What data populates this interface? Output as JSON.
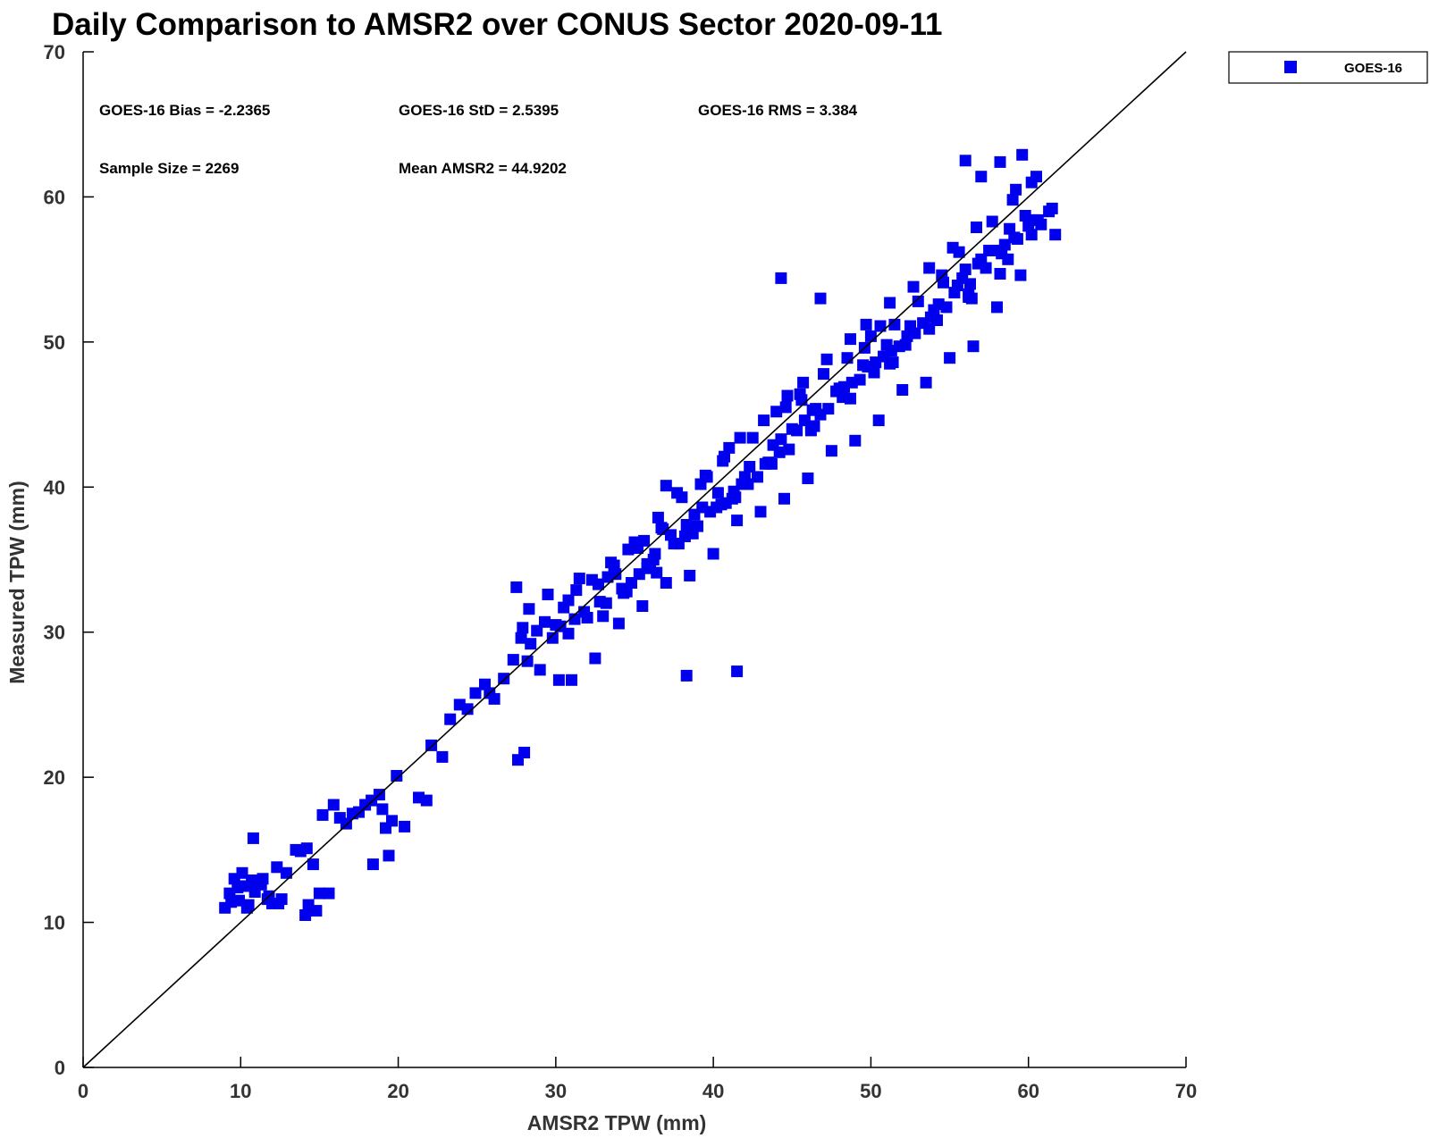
{
  "chart_data": {
    "type": "scatter",
    "title": "Daily Comparison to AMSR2 over CONUS Sector 2020-09-11",
    "xlabel": "AMSR2 TPW (mm)",
    "ylabel": "Measured TPW (mm)",
    "xlim": [
      0,
      70
    ],
    "ylim": [
      0,
      70
    ],
    "xticks": [
      "0",
      "10",
      "20",
      "30",
      "40",
      "50",
      "60",
      "70"
    ],
    "yticks": [
      "0",
      "10",
      "20",
      "30",
      "40",
      "50",
      "60",
      "70"
    ],
    "grid": false,
    "legend_position": "outside-top-right",
    "reference_line": "one-to-one",
    "marker_color": "#0000ee",
    "stats": [
      "GOES-16 Bias = -2.2365",
      "GOES-16 StD = 2.5395",
      "GOES-16 RMS = 3.384",
      "Sample Size = 2269",
      "Mean AMSR2 = 44.9202"
    ],
    "series": [
      {
        "name": "GOES-16",
        "x": [
          9.0,
          9.3,
          9.6,
          9.9,
          10.2,
          10.5,
          10.8,
          11.1,
          11.4,
          11.7,
          12.0,
          12.3,
          12.6,
          12.9,
          9.4,
          9.8,
          10.1,
          10.4,
          10.9,
          11.3,
          11.8,
          12.4,
          10.7,
          13.5,
          13.8,
          14.2,
          14.6,
          15.0,
          14.8,
          15.6,
          15.9,
          16.3,
          16.7,
          17.1,
          17.5,
          17.9,
          18.3,
          18.8,
          19.2,
          19.6,
          19.9,
          20.4,
          21.3,
          21.8,
          22.1,
          18.4,
          19.0,
          19.4,
          14.1,
          14.3,
          15.2,
          22.8,
          23.3,
          23.9,
          24.4,
          24.9,
          25.5,
          26.1,
          26.7,
          27.3,
          27.8,
          28.4,
          28.0,
          27.5,
          27.9,
          28.3,
          28.8,
          29.3,
          29.8,
          30.3,
          30.8,
          31.3,
          31.8,
          32.3,
          32.8,
          33.3,
          33.8,
          34.3,
          34.8,
          35.3,
          35.8,
          36.3,
          36.8,
          37.3,
          37.8,
          38.3,
          38.8,
          39.3,
          39.8,
          40.3,
          40.8,
          41.3,
          41.8,
          42.3,
          42.8,
          43.3,
          43.8,
          44.3,
          44.8,
          45.3,
          45.8,
          46.3,
          46.8,
          47.3,
          47.8,
          48.3,
          48.8,
          49.3,
          49.8,
          50.3,
          50.8,
          51.3,
          51.8,
          52.3,
          52.8,
          53.3,
          53.8,
          54.3,
          54.8,
          55.3,
          55.8,
          56.3,
          56.8,
          57.3,
          57.8,
          58.3,
          58.8,
          59.3,
          59.8,
          60.3,
          60.8,
          61.3,
          61.7,
          31.0,
          32.5,
          34.0,
          35.5,
          37.0,
          38.5,
          40.0,
          41.5,
          43.0,
          44.5,
          46.0,
          47.5,
          49.0,
          50.5,
          52.0,
          53.5,
          55.0,
          56.5,
          58.0,
          59.5,
          30.5,
          31.5,
          33.5,
          35.0,
          36.5,
          38.0,
          39.5,
          41.0,
          42.5,
          44.0,
          45.5,
          47.0,
          48.5,
          50.0,
          51.5,
          53.0,
          54.5,
          56.0,
          57.5,
          59.0,
          60.5,
          33.0,
          34.5,
          36.0,
          37.5,
          39.0,
          40.5,
          42.0,
          43.5,
          45.0,
          46.5,
          48.0,
          49.5,
          51.0,
          52.5,
          54.0,
          55.5,
          57.0,
          58.5,
          60.0,
          61.5,
          29.5,
          32.0,
          34.2,
          36.2,
          38.2,
          40.2,
          42.2,
          44.2,
          46.2,
          48.2,
          50.2,
          52.2,
          54.2,
          56.2,
          58.2,
          60.2,
          29.0,
          30.0,
          31.2,
          32.7,
          33.7,
          35.2,
          36.7,
          37.7,
          39.2,
          40.7,
          41.7,
          43.2,
          44.7,
          45.7,
          47.2,
          48.7,
          49.7,
          51.2,
          52.7,
          53.7,
          55.2,
          56.7,
          57.7,
          59.2,
          44.3,
          46.8,
          38.3,
          41.5,
          27.6,
          30.2,
          25.8,
          37.0,
          56.0,
          57.0,
          58.2,
          59.6,
          60.2,
          28.2,
          30.8,
          33.2,
          35.8,
          38.7,
          41.2,
          43.7,
          46.2,
          48.7,
          51.2,
          53.7,
          56.2,
          58.7,
          34.6,
          39.6,
          44.6,
          49.6,
          54.6,
          59.1,
          36.4,
          41.4,
          46.4,
          51.4,
          56.4,
          35.6,
          40.6,
          45.6,
          50.6,
          55.6,
          60.6
        ],
        "y": [
          11.0,
          12.0,
          13.0,
          11.5,
          12.5,
          11.2,
          15.8,
          12.8,
          13.0,
          11.6,
          11.3,
          13.8,
          11.6,
          13.4,
          11.4,
          12.4,
          13.4,
          11.0,
          12.1,
          12.6,
          11.8,
          11.3,
          12.9,
          15.0,
          14.9,
          15.1,
          14.0,
          12.0,
          10.8,
          12.0,
          18.1,
          17.2,
          16.8,
          17.5,
          17.6,
          18.1,
          18.4,
          18.8,
          16.5,
          17.0,
          20.1,
          16.6,
          18.6,
          18.4,
          22.2,
          14.0,
          17.8,
          14.6,
          10.5,
          11.2,
          17.4,
          21.4,
          24.0,
          25.0,
          24.7,
          25.8,
          26.4,
          25.4,
          26.8,
          28.1,
          29.6,
          29.2,
          21.7,
          33.1,
          30.3,
          31.6,
          30.1,
          30.7,
          29.6,
          30.4,
          32.2,
          32.9,
          31.4,
          33.6,
          32.1,
          33.8,
          34.0,
          32.7,
          33.4,
          34.0,
          34.7,
          35.4,
          37.1,
          36.7,
          36.1,
          37.4,
          38.1,
          38.6,
          38.3,
          39.6,
          38.9,
          39.7,
          40.2,
          41.4,
          40.7,
          41.6,
          42.9,
          43.3,
          42.6,
          43.9,
          44.6,
          45.3,
          45.0,
          45.4,
          46.6,
          46.9,
          47.2,
          47.4,
          48.3,
          48.6,
          49.0,
          49.4,
          49.7,
          50.4,
          50.6,
          51.3,
          51.7,
          52.6,
          52.4,
          53.4,
          54.4,
          54.0,
          55.4,
          55.1,
          56.3,
          56.1,
          57.8,
          57.1,
          58.7,
          58.4,
          58.1,
          59.0,
          57.4,
          26.7,
          28.2,
          30.6,
          31.8,
          33.4,
          33.9,
          35.4,
          37.7,
          38.3,
          39.2,
          40.6,
          42.5,
          43.2,
          44.6,
          46.7,
          47.2,
          48.9,
          49.7,
          52.4,
          54.6,
          31.7,
          33.7,
          34.8,
          36.2,
          37.9,
          39.3,
          40.8,
          42.7,
          43.4,
          45.2,
          46.4,
          47.8,
          48.9,
          50.4,
          51.2,
          52.8,
          54.6,
          55.0,
          56.3,
          59.8,
          61.4,
          31.1,
          32.8,
          34.6,
          36.1,
          37.3,
          38.8,
          40.7,
          41.7,
          44.0,
          45.4,
          46.8,
          48.4,
          49.8,
          51.1,
          52.2,
          53.9,
          55.7,
          56.7,
          58.0,
          59.2,
          32.6,
          31.0,
          33.0,
          35.0,
          36.6,
          38.6,
          40.2,
          42.4,
          44.2,
          46.2,
          47.9,
          49.8,
          51.5,
          53.1,
          54.7,
          57.4,
          27.4,
          30.5,
          30.9,
          33.3,
          34.6,
          35.8,
          37.2,
          39.6,
          40.2,
          42.1,
          43.4,
          44.6,
          46.3,
          47.2,
          48.8,
          50.2,
          51.2,
          52.7,
          53.8,
          55.1,
          56.5,
          57.9,
          58.3,
          60.5,
          54.4,
          53.0,
          27.0,
          27.3,
          21.2,
          26.7,
          25.8,
          40.1,
          62.5,
          61.4,
          62.4,
          62.9,
          61.0,
          28.0,
          29.9,
          32.0,
          34.4,
          36.8,
          39.2,
          41.6,
          43.9,
          46.1,
          48.5,
          50.9,
          53.3,
          55.7,
          35.7,
          40.7,
          45.5,
          49.6,
          54.1,
          57.2,
          34.1,
          39.3,
          44.2,
          48.6,
          53.0,
          36.3,
          41.8,
          46.0,
          51.1,
          56.2,
          58.4
        ]
      }
    ]
  }
}
